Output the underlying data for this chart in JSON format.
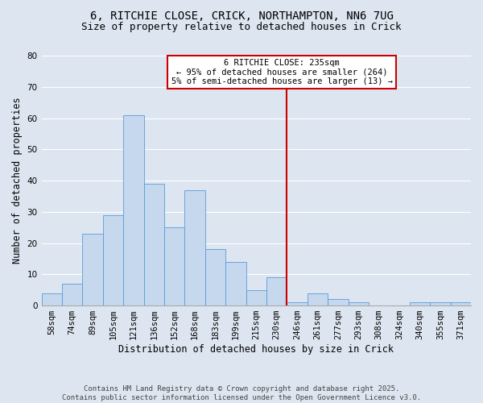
{
  "title_line1": "6, RITCHIE CLOSE, CRICK, NORTHAMPTON, NN6 7UG",
  "title_line2": "Size of property relative to detached houses in Crick",
  "xlabel": "Distribution of detached houses by size in Crick",
  "ylabel": "Number of detached properties",
  "categories": [
    "58sqm",
    "74sqm",
    "89sqm",
    "105sqm",
    "121sqm",
    "136sqm",
    "152sqm",
    "168sqm",
    "183sqm",
    "199sqm",
    "215sqm",
    "230sqm",
    "246sqm",
    "261sqm",
    "277sqm",
    "293sqm",
    "308sqm",
    "324sqm",
    "340sqm",
    "355sqm",
    "371sqm"
  ],
  "values": [
    4,
    7,
    23,
    29,
    61,
    39,
    25,
    37,
    18,
    14,
    5,
    9,
    1,
    4,
    2,
    1,
    0,
    0,
    1,
    1,
    1
  ],
  "bar_color": "#c5d8ee",
  "bar_edge_color": "#5b9bd5",
  "background_color": "#dde6f0",
  "grid_color": "#ffffff",
  "vline_x": 11.5,
  "vline_color": "#cc0000",
  "annotation_text": "6 RITCHIE CLOSE: 235sqm\n← 95% of detached houses are smaller (264)\n5% of semi-detached houses are larger (13) →",
  "annotation_box_color": "#cc0000",
  "ylim": [
    0,
    80
  ],
  "yticks": [
    0,
    10,
    20,
    30,
    40,
    50,
    60,
    70,
    80
  ],
  "footnote": "Contains HM Land Registry data © Crown copyright and database right 2025.\nContains public sector information licensed under the Open Government Licence v3.0.",
  "title_fontsize": 10,
  "subtitle_fontsize": 9,
  "axis_label_fontsize": 8.5,
  "tick_fontsize": 7.5,
  "annotation_fontsize": 7.5,
  "footnote_fontsize": 6.5
}
